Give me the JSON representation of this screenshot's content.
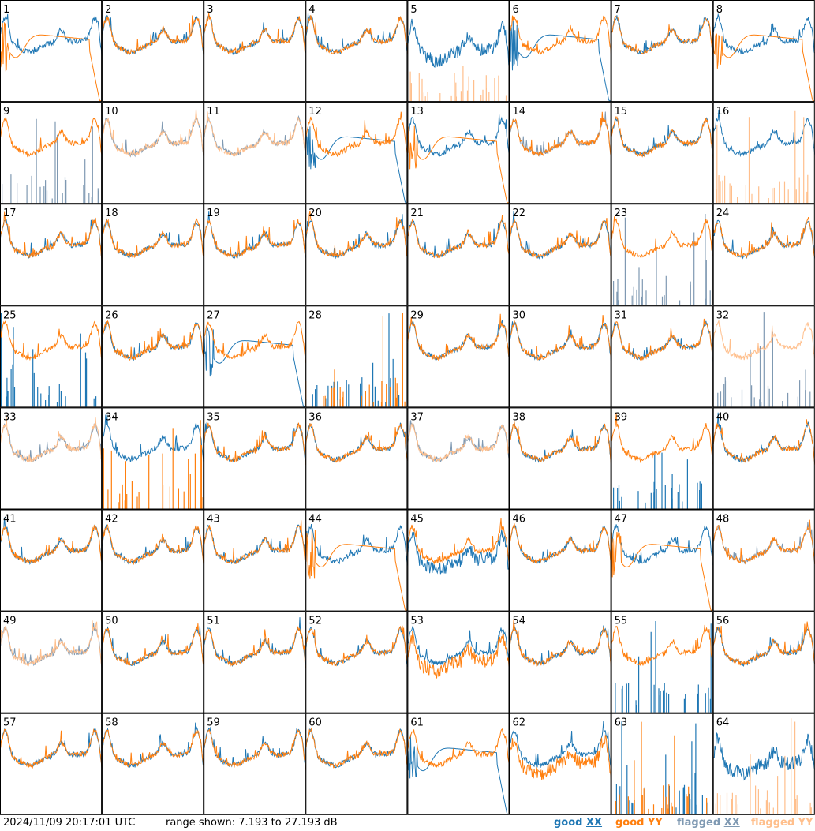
{
  "chart_data": {
    "type": "line",
    "layout": "8x8 small multiples",
    "timestamp": "2024/11/09 20:17:01 UTC",
    "range_text": "range shown: 7.193 to 27.193 dB",
    "ylim": [
      7.193,
      27.193
    ],
    "series": [
      {
        "name": "good XX",
        "color": "#1f77b4"
      },
      {
        "name": "good YY",
        "color": "#ff7f0e"
      },
      {
        "name": "flagged XX",
        "color": "#7f99b2"
      },
      {
        "name": "flagged YY",
        "color": "#ffbf8c"
      }
    ],
    "legend": {
      "good_xx": {
        "prefix": "good ",
        "pol": "XX"
      },
      "good_yy": {
        "prefix": "good ",
        "pol": "YY"
      },
      "flagged_xx": {
        "prefix": "flagged ",
        "pol": "XX"
      },
      "flagged_yy": {
        "prefix": "flagged ",
        "pol": "YY"
      }
    },
    "panels": [
      {
        "label": "1",
        "xx": "normal",
        "yy": "droop",
        "xflag": false,
        "yflag": false
      },
      {
        "label": "2",
        "xx": "normal",
        "yy": "normal",
        "xflag": false,
        "yflag": false
      },
      {
        "label": "3",
        "xx": "normal",
        "yy": "normal",
        "xflag": false,
        "yflag": false
      },
      {
        "label": "4",
        "xx": "normal",
        "yy": "normal",
        "xflag": false,
        "yflag": false
      },
      {
        "label": "5",
        "xx": "noisy",
        "yy": "spikes",
        "xflag": false,
        "yflag": true
      },
      {
        "label": "6",
        "xx": "droop",
        "yy": "normal",
        "xflag": false,
        "yflag": false
      },
      {
        "label": "7",
        "xx": "normal",
        "yy": "normal",
        "xflag": false,
        "yflag": false
      },
      {
        "label": "8",
        "xx": "normal",
        "yy": "droop",
        "xflag": false,
        "yflag": false
      },
      {
        "label": "9",
        "xx": "spikes",
        "yy": "normal",
        "xflag": true,
        "yflag": false
      },
      {
        "label": "10",
        "xx": "normal",
        "yy": "normal",
        "xflag": true,
        "yflag": true
      },
      {
        "label": "11",
        "xx": "normal",
        "yy": "normal",
        "xflag": true,
        "yflag": true
      },
      {
        "label": "12",
        "xx": "droop",
        "yy": "normal",
        "xflag": false,
        "yflag": false
      },
      {
        "label": "13",
        "xx": "normal",
        "yy": "droop",
        "xflag": false,
        "yflag": false
      },
      {
        "label": "14",
        "xx": "normal",
        "yy": "normal",
        "xflag": true,
        "yflag": false
      },
      {
        "label": "15",
        "xx": "normal",
        "yy": "normal",
        "xflag": false,
        "yflag": false
      },
      {
        "label": "16",
        "xx": "normal",
        "yy": "spikes",
        "xflag": false,
        "yflag": true
      },
      {
        "label": "17",
        "xx": "normal",
        "yy": "normal",
        "xflag": false,
        "yflag": false
      },
      {
        "label": "18",
        "xx": "normal",
        "yy": "normal",
        "xflag": false,
        "yflag": false
      },
      {
        "label": "19",
        "xx": "normal",
        "yy": "normal",
        "xflag": false,
        "yflag": false
      },
      {
        "label": "20",
        "xx": "normal",
        "yy": "normal",
        "xflag": false,
        "yflag": false
      },
      {
        "label": "21",
        "xx": "normal",
        "yy": "normal",
        "xflag": false,
        "yflag": false
      },
      {
        "label": "22",
        "xx": "normal",
        "yy": "normal",
        "xflag": false,
        "yflag": false
      },
      {
        "label": "23",
        "xx": "spikes",
        "yy": "normal",
        "xflag": true,
        "yflag": false
      },
      {
        "label": "24",
        "xx": "normal",
        "yy": "normal",
        "xflag": false,
        "yflag": false
      },
      {
        "label": "25",
        "xx": "spikes",
        "yy": "normal",
        "xflag": false,
        "yflag": false
      },
      {
        "label": "26",
        "xx": "normal",
        "yy": "normal",
        "xflag": false,
        "yflag": false
      },
      {
        "label": "27",
        "xx": "droop",
        "yy": "normal",
        "xflag": false,
        "yflag": false
      },
      {
        "label": "28",
        "xx": "spikes",
        "yy": "spikes",
        "xflag": false,
        "yflag": false
      },
      {
        "label": "29",
        "xx": "normal",
        "yy": "normal",
        "xflag": false,
        "yflag": false
      },
      {
        "label": "30",
        "xx": "normal",
        "yy": "normal",
        "xflag": false,
        "yflag": false
      },
      {
        "label": "31",
        "xx": "normal",
        "yy": "normal",
        "xflag": false,
        "yflag": false
      },
      {
        "label": "32",
        "xx": "spikes",
        "yy": "normal",
        "xflag": true,
        "yflag": true
      },
      {
        "label": "33",
        "xx": "normal",
        "yy": "normal",
        "xflag": true,
        "yflag": true
      },
      {
        "label": "34",
        "xx": "normal",
        "yy": "spikes",
        "xflag": false,
        "yflag": false
      },
      {
        "label": "35",
        "xx": "normal",
        "yy": "normal",
        "xflag": false,
        "yflag": false
      },
      {
        "label": "36",
        "xx": "normal",
        "yy": "normal",
        "xflag": false,
        "yflag": false
      },
      {
        "label": "37",
        "xx": "normal",
        "yy": "normal",
        "xflag": true,
        "yflag": true
      },
      {
        "label": "38",
        "xx": "normal",
        "yy": "normal",
        "xflag": false,
        "yflag": false
      },
      {
        "label": "39",
        "xx": "spikes",
        "yy": "normal",
        "xflag": false,
        "yflag": false
      },
      {
        "label": "40",
        "xx": "normal",
        "yy": "normal",
        "xflag": false,
        "yflag": false
      },
      {
        "label": "41",
        "xx": "normal",
        "yy": "normal",
        "xflag": false,
        "yflag": false
      },
      {
        "label": "42",
        "xx": "normal",
        "yy": "normal",
        "xflag": false,
        "yflag": false
      },
      {
        "label": "43",
        "xx": "normal",
        "yy": "normal",
        "xflag": false,
        "yflag": false
      },
      {
        "label": "44",
        "xx": "normal",
        "yy": "droop",
        "xflag": false,
        "yflag": false
      },
      {
        "label": "45",
        "xx": "noisy",
        "yy": "normal",
        "xflag": false,
        "yflag": false
      },
      {
        "label": "46",
        "xx": "normal",
        "yy": "normal",
        "xflag": false,
        "yflag": false
      },
      {
        "label": "47",
        "xx": "normal",
        "yy": "droop",
        "xflag": false,
        "yflag": false
      },
      {
        "label": "48",
        "xx": "normal",
        "yy": "normal",
        "xflag": true,
        "yflag": false
      },
      {
        "label": "49",
        "xx": "normal",
        "yy": "normal",
        "xflag": true,
        "yflag": true
      },
      {
        "label": "50",
        "xx": "normal",
        "yy": "normal",
        "xflag": false,
        "yflag": false
      },
      {
        "label": "51",
        "xx": "normal",
        "yy": "normal",
        "xflag": false,
        "yflag": false
      },
      {
        "label": "52",
        "xx": "normal",
        "yy": "normal",
        "xflag": false,
        "yflag": false
      },
      {
        "label": "53",
        "xx": "normal",
        "yy": "noisy",
        "xflag": false,
        "yflag": false
      },
      {
        "label": "54",
        "xx": "normal",
        "yy": "normal",
        "xflag": false,
        "yflag": false
      },
      {
        "label": "55",
        "xx": "spikes",
        "yy": "normal",
        "xflag": false,
        "yflag": false
      },
      {
        "label": "56",
        "xx": "normal",
        "yy": "normal",
        "xflag": false,
        "yflag": false
      },
      {
        "label": "57",
        "xx": "normal",
        "yy": "normal",
        "xflag": false,
        "yflag": false
      },
      {
        "label": "58",
        "xx": "normal",
        "yy": "normal",
        "xflag": false,
        "yflag": false
      },
      {
        "label": "59",
        "xx": "normal",
        "yy": "normal",
        "xflag": false,
        "yflag": false
      },
      {
        "label": "60",
        "xx": "normal",
        "yy": "normal",
        "xflag": false,
        "yflag": false
      },
      {
        "label": "61",
        "xx": "droop",
        "yy": "normal",
        "xflag": false,
        "yflag": false
      },
      {
        "label": "62",
        "xx": "normal",
        "yy": "noisy",
        "xflag": false,
        "yflag": false
      },
      {
        "label": "63",
        "xx": "spikes",
        "yy": "spikes",
        "xflag": false,
        "yflag": false
      },
      {
        "label": "64",
        "xx": "noisy",
        "yy": "spikes",
        "xflag": false,
        "yflag": true
      }
    ]
  }
}
